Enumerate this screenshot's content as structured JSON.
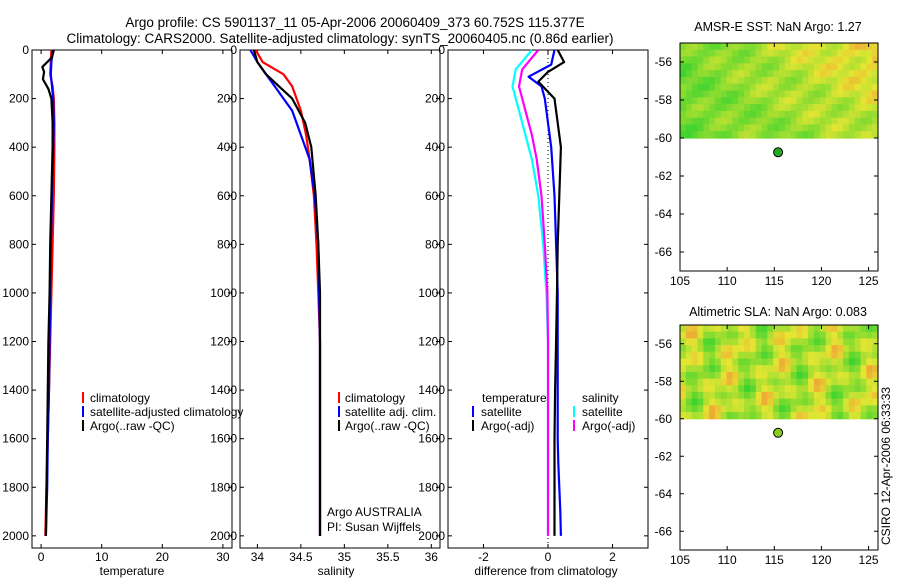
{
  "header": {
    "line1": "Argo profile: CS 5901137_11 05-Apr-2006 20060409_373 60.752S 115.377E",
    "line2": "Climatology: CARS2000. Satellite-adjusted climatology: synTS_20060405.nc (0.86d earlier)"
  },
  "side_credit": "CSIRO 12-Apr-2006 06:33:33",
  "colors": {
    "climatology": "#ff0000",
    "satellite": "#0000ff",
    "argo": "#000000",
    "satellite_sal": "#00ffff",
    "argo_sal": "#ff00ff"
  },
  "chart_data": [
    {
      "id": "temperature",
      "type": "line",
      "xlabel": "temperature",
      "ylabel": "",
      "xlim": [
        -1.5,
        31.5
      ],
      "ylim": [
        2050,
        0
      ],
      "xticks": [
        0,
        10,
        20,
        30
      ],
      "yticks": [
        0,
        200,
        400,
        600,
        800,
        1000,
        1200,
        1400,
        1600,
        1800,
        2000
      ],
      "legend": [
        "climatology",
        "satellite-adjusted climatology",
        "Argo(..raw -QC)"
      ],
      "series": [
        {
          "name": "climatology",
          "color": "#ff0000",
          "x": [
            1.7,
            1.6,
            1.5,
            1.9,
            2.1,
            2.2,
            2.2,
            2.1,
            1.9,
            1.7,
            1.5,
            1.3,
            1.1,
            0.9,
            0.8,
            0.7
          ],
          "y": [
            0,
            50,
            100,
            150,
            200,
            300,
            400,
            600,
            800,
            1000,
            1200,
            1400,
            1600,
            1800,
            1900,
            2000
          ]
        },
        {
          "name": "satellite-adjusted climatology",
          "color": "#0000ff",
          "x": [
            1.9,
            1.7,
            1.6,
            1.8,
            2.0,
            2.1,
            2.0,
            1.8,
            1.6,
            1.5,
            1.4,
            1.3,
            1.1,
            1.0,
            0.9,
            0.8
          ],
          "y": [
            0,
            50,
            100,
            150,
            200,
            300,
            400,
            600,
            800,
            1000,
            1200,
            1400,
            1600,
            1800,
            1900,
            2000
          ]
        },
        {
          "name": "Argo(..raw -QC)",
          "color": "#000000",
          "x": [
            2.1,
            1.8,
            0.2,
            0.5,
            0.3,
            1.2,
            1.7,
            1.9,
            1.9,
            1.7,
            1.5,
            1.4,
            1.2,
            1.1,
            1.0,
            0.9,
            0.8
          ],
          "y": [
            0,
            30,
            70,
            90,
            120,
            160,
            200,
            300,
            400,
            600,
            800,
            1000,
            1200,
            1400,
            1600,
            1800,
            2000
          ]
        }
      ]
    },
    {
      "id": "salinity",
      "type": "line",
      "xlabel": "salinity",
      "ylabel": "",
      "xlim": [
        33.8,
        36.1
      ],
      "ylim": [
        2050,
        0
      ],
      "xticks": [
        34,
        34.5,
        35,
        35.5,
        36
      ],
      "yticks": [
        0,
        200,
        400,
        600,
        800,
        1000,
        1200,
        1400,
        1600,
        1800,
        2000
      ],
      "legend": [
        "climatology",
        "satellite adj. clim.",
        "Argo(..raw -QC)"
      ],
      "credit": [
        "Argo AUSTRALIA",
        "PI: Susan Wijffels"
      ],
      "series": [
        {
          "name": "climatology",
          "color": "#ff0000",
          "x": [
            33.98,
            34.06,
            34.3,
            34.4,
            34.5,
            34.56,
            34.6,
            34.65,
            34.68,
            34.7,
            34.72,
            34.72,
            34.72,
            34.72,
            34.72
          ],
          "y": [
            0,
            50,
            100,
            150,
            250,
            350,
            450,
            600,
            800,
            1000,
            1200,
            1400,
            1600,
            1800,
            2000
          ]
        },
        {
          "name": "satellite adj. clim.",
          "color": "#0000ff",
          "x": [
            33.92,
            34.0,
            34.1,
            34.2,
            34.3,
            34.4,
            34.5,
            34.6,
            34.66,
            34.7,
            34.71,
            34.72,
            34.72,
            34.72,
            34.72
          ],
          "y": [
            0,
            50,
            100,
            150,
            200,
            250,
            350,
            450,
            600,
            800,
            1000,
            1200,
            1400,
            1600,
            2000
          ]
        },
        {
          "name": "Argo(..raw -QC)",
          "color": "#000000",
          "x": [
            33.96,
            34.0,
            34.1,
            34.25,
            34.4,
            34.55,
            34.62,
            34.67,
            34.7,
            34.72,
            34.72,
            34.72,
            34.72,
            34.72
          ],
          "y": [
            0,
            50,
            100,
            150,
            200,
            300,
            400,
            600,
            800,
            1000,
            1200,
            1400,
            1600,
            2000
          ]
        }
      ]
    },
    {
      "id": "difference",
      "type": "line",
      "xlabel": "difference from climatology",
      "ylabel": "",
      "xlim": [
        -3.1,
        3.1
      ],
      "ylim": [
        2050,
        0
      ],
      "xticks": [
        -2,
        0,
        2
      ],
      "yticks": [
        0,
        200,
        400,
        600,
        800,
        1000,
        1200,
        1400,
        1600,
        1800,
        2000
      ],
      "legend_left": [
        "temperature",
        "satellite",
        "Argo(-adj)"
      ],
      "legend_right": [
        "salinity",
        "satellite",
        "Argo(-adj)"
      ],
      "series": [
        {
          "name": "temperature satellite",
          "color": "#0000ff",
          "x": [
            0.2,
            0.1,
            -0.6,
            -0.2,
            -0.1,
            0.0,
            0.1,
            0.2,
            0.25,
            0.3,
            0.3,
            0.3,
            0.3,
            0.32,
            0.35,
            0.38,
            0.4
          ],
          "y": [
            0,
            60,
            110,
            150,
            200,
            300,
            400,
            600,
            800,
            1000,
            1200,
            1400,
            1600,
            1700,
            1800,
            1900,
            2000
          ]
        },
        {
          "name": "temperature Argo(-adj)",
          "color": "#000000",
          "x": [
            0.3,
            0.5,
            0.0,
            -0.3,
            0.2,
            0.3,
            0.4,
            0.35,
            0.3,
            0.28,
            0.25,
            0.22,
            0.2,
            0.2
          ],
          "y": [
            0,
            50,
            90,
            130,
            200,
            300,
            400,
            600,
            800,
            1000,
            1200,
            1400,
            1600,
            2000
          ]
        },
        {
          "name": "salinity satellite",
          "color": "#00ffff",
          "x": [
            -0.5,
            -1.0,
            -1.1,
            -0.9,
            -0.7,
            -0.5,
            -0.3,
            -0.15,
            -0.05,
            0.0,
            0.0,
            0.0,
            0.0
          ],
          "y": [
            0,
            80,
            150,
            250,
            350,
            450,
            600,
            800,
            1000,
            1200,
            1400,
            1600,
            2000
          ]
        },
        {
          "name": "salinity Argo(-adj)",
          "color": "#ff00ff",
          "x": [
            -0.3,
            -0.8,
            -0.9,
            -0.7,
            -0.5,
            -0.35,
            -0.2,
            -0.1,
            -0.02,
            0.0,
            0.0,
            0.0
          ],
          "y": [
            0,
            80,
            150,
            250,
            350,
            450,
            600,
            800,
            1000,
            1200,
            1600,
            2000
          ]
        }
      ]
    },
    {
      "id": "sst-map",
      "type": "heatmap",
      "title": "AMSR-E SST: NaN Argo: 1.27",
      "xlim": [
        105,
        126
      ],
      "ylim": [
        -67,
        -55
      ],
      "xticks": [
        105,
        110,
        115,
        120,
        125
      ],
      "yticks": [
        -56,
        -58,
        -60,
        -62,
        -64,
        -66
      ],
      "data_extent": {
        "lon": [
          105,
          126
        ],
        "lat": [
          -60,
          -55
        ]
      },
      "marker": {
        "lon": 115.4,
        "lat": -60.75,
        "color": "#22aa22"
      }
    },
    {
      "id": "sla-map",
      "type": "heatmap",
      "title": "Altimetric SLA: NaN Argo: 0.083",
      "xlim": [
        105,
        126
      ],
      "ylim": [
        -67,
        -55
      ],
      "xticks": [
        105,
        110,
        115,
        120,
        125
      ],
      "yticks": [
        -56,
        -58,
        -60,
        -62,
        -64,
        -66
      ],
      "data_extent": {
        "lon": [
          105,
          126
        ],
        "lat": [
          -60,
          -55
        ]
      },
      "marker": {
        "lon": 115.4,
        "lat": -60.75,
        "color": "#88cc22"
      }
    }
  ]
}
